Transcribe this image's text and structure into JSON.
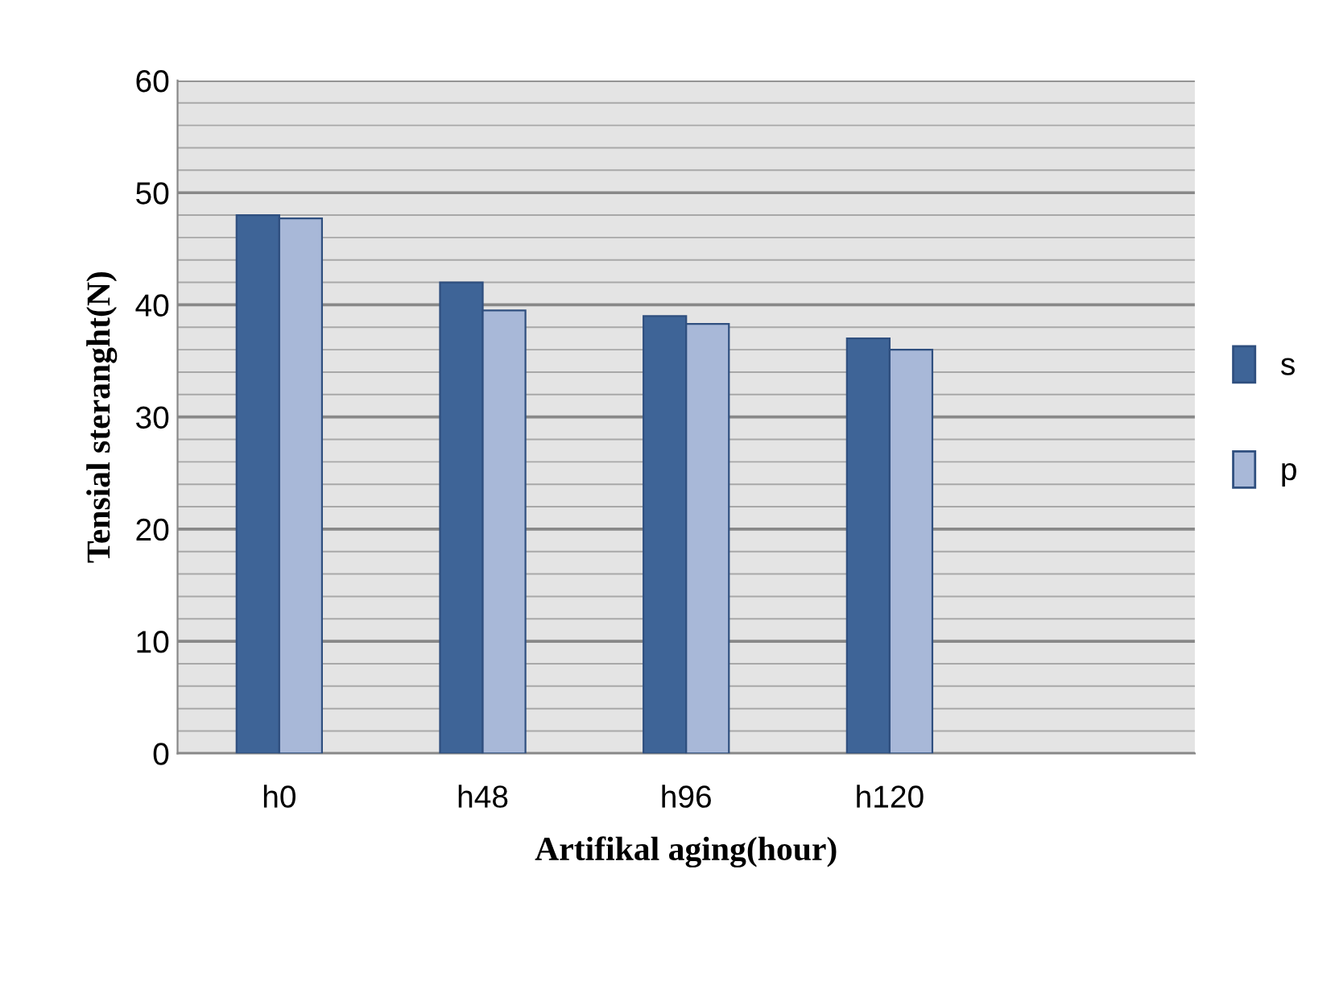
{
  "chart_data": {
    "type": "bar",
    "xlabel": "Artifikal aging(hour)",
    "ylabel": "Tensial steranght(N)",
    "categories": [
      "h0",
      "h48",
      "h96",
      "h120",
      null
    ],
    "series": [
      {
        "name": "s",
        "color": "#3e6497",
        "values": [
          48,
          42,
          39,
          37,
          null
        ]
      },
      {
        "name": "p",
        "color": "#a8b8d8",
        "values": [
          47.7,
          39.5,
          38.3,
          36,
          null
        ]
      }
    ],
    "ylim": [
      0,
      60
    ],
    "yticks": [
      0,
      {
        "value": 2,
        "label": null
      },
      {
        "value": 4,
        "label": null
      },
      {
        "value": 6,
        "label": null
      },
      {
        "value": 8,
        "label": null
      },
      10,
      {
        "value": 12,
        "label": null
      },
      {
        "value": 14,
        "label": null
      },
      {
        "value": 16,
        "label": null
      },
      {
        "value": 18,
        "label": null
      },
      20,
      {
        "value": 22,
        "label": null
      },
      {
        "value": 24,
        "label": null
      },
      {
        "value": 26,
        "label": null
      },
      {
        "value": 28,
        "label": null
      },
      30,
      {
        "value": 32,
        "label": null
      },
      {
        "value": 34,
        "label": null
      },
      {
        "value": 36,
        "label": null
      },
      {
        "value": 38,
        "label": null
      },
      40,
      {
        "value": 42,
        "label": null
      },
      {
        "value": 44,
        "label": null
      },
      {
        "value": 46,
        "label": null
      },
      {
        "value": 48,
        "label": null
      },
      50,
      {
        "value": 52,
        "label": null
      },
      {
        "value": 54,
        "label": null
      },
      {
        "value": 56,
        "label": null
      },
      {
        "value": 58,
        "label": null
      },
      60
    ],
    "grid": "y",
    "legend": "right"
  }
}
